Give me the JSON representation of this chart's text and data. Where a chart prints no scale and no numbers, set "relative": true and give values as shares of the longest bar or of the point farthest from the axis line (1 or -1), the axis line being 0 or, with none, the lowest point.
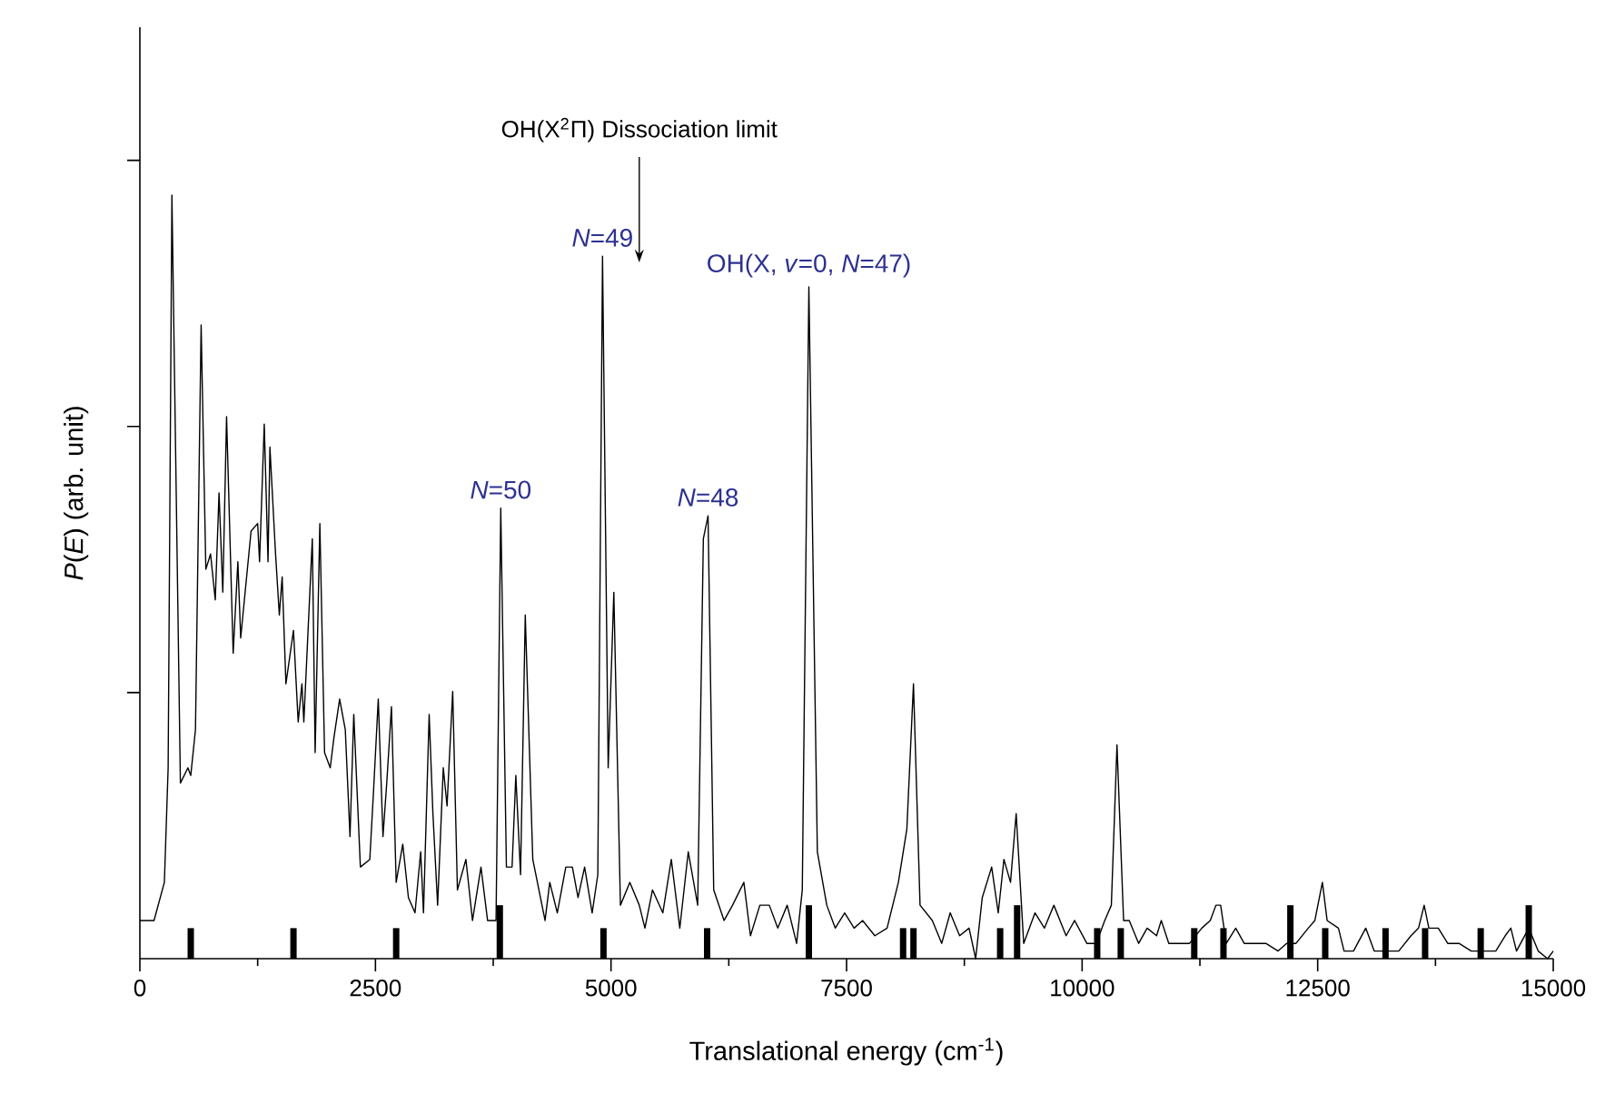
{
  "chart_data": {
    "type": "line",
    "relative": true,
    "xlabel": "Translational energy (cm$^{-1}$)",
    "ylabel": "*P*(*E*) (arb. unit)",
    "xlim": [
      0,
      15000
    ],
    "xticks": [
      0,
      2500,
      5000,
      7500,
      10000,
      12500,
      15000
    ],
    "series": [
      {
        "type": "bar",
        "color": "#000000",
        "x": [
          540,
          1630,
          2720,
          3820,
          4920,
          6020,
          7100,
          8100,
          8210,
          9130,
          9310,
          10160,
          10410,
          11190,
          11500,
          12210,
          12580,
          13220,
          13640,
          14230,
          14740
        ],
        "values": [
          0.04,
          0.04,
          0.04,
          0.07,
          0.04,
          0.04,
          0.07,
          0.04,
          0.04,
          0.04,
          0.07,
          0.04,
          0.04,
          0.04,
          0.04,
          0.07,
          0.04,
          0.04,
          0.04,
          0.04,
          0.07
        ]
      },
      {
        "color": "#000000",
        "x": [
          0,
          150,
          260,
          300,
          340,
          430,
          510,
          540,
          590,
          650,
          700,
          750,
          800,
          840,
          880,
          920,
          990,
          1040,
          1070,
          1180,
          1250,
          1270,
          1320,
          1360,
          1380,
          1440,
          1480,
          1510,
          1550,
          1630,
          1680,
          1720,
          1740,
          1830,
          1860,
          1910,
          1960,
          2020,
          2060,
          2120,
          2180,
          2230,
          2270,
          2340,
          2440,
          2480,
          2530,
          2580,
          2620,
          2670,
          2720,
          2790,
          2850,
          2920,
          2980,
          3010,
          3070,
          3110,
          3160,
          3220,
          3260,
          3320,
          3370,
          3460,
          3530,
          3620,
          3690,
          3780,
          3830,
          3890,
          3950,
          3990,
          4040,
          4090,
          4170,
          4300,
          4350,
          4430,
          4520,
          4590,
          4650,
          4720,
          4800,
          4860,
          4910,
          4970,
          5030,
          5100,
          5200,
          5300,
          5360,
          5440,
          5550,
          5640,
          5730,
          5820,
          5920,
          5980,
          6030,
          6090,
          6200,
          6290,
          6410,
          6480,
          6580,
          6680,
          6770,
          6870,
          6970,
          7030,
          7100,
          7190,
          7290,
          7380,
          7480,
          7580,
          7670,
          7800,
          7930,
          8050,
          8140,
          8210,
          8280,
          8410,
          8510,
          8600,
          8700,
          8800,
          8870,
          8940,
          9040,
          9110,
          9170,
          9240,
          9300,
          9380,
          9500,
          9600,
          9700,
          9830,
          9920,
          10050,
          10150,
          10240,
          10310,
          10370,
          10440,
          10500,
          10600,
          10690,
          10790,
          10840,
          10920,
          11050,
          11140,
          11270,
          11360,
          11420,
          11470,
          11530,
          11630,
          11720,
          11820,
          11950,
          12080,
          12170,
          12270,
          12400,
          12470,
          12550,
          12600,
          12720,
          12780,
          12880,
          13010,
          13100,
          13230,
          13360,
          13490,
          13570,
          13630,
          13680,
          13780,
          13880,
          14000,
          14130,
          14260,
          14390,
          14490,
          14550,
          14610,
          14740,
          14840,
          14940,
          15000
        ],
        "values": [
          0.05,
          0.05,
          0.1,
          0.25,
          1,
          0.23,
          0.25,
          0.24,
          0.3,
          0.83,
          0.51,
          0.53,
          0.47,
          0.61,
          0.48,
          0.71,
          0.4,
          0.52,
          0.42,
          0.56,
          0.57,
          0.52,
          0.7,
          0.52,
          0.67,
          0.53,
          0.45,
          0.5,
          0.36,
          0.43,
          0.31,
          0.36,
          0.31,
          0.55,
          0.27,
          0.57,
          0.27,
          0.25,
          0.29,
          0.34,
          0.3,
          0.16,
          0.32,
          0.12,
          0.13,
          0.22,
          0.34,
          0.16,
          0.23,
          0.33,
          0.1,
          0.15,
          0.08,
          0.06,
          0.14,
          0.06,
          0.32,
          0.19,
          0.07,
          0.25,
          0.2,
          0.35,
          0.09,
          0.13,
          0.05,
          0.12,
          0.05,
          0.05,
          0.59,
          0.12,
          0.12,
          0.24,
          0.11,
          0.45,
          0.13,
          0.05,
          0.1,
          0.06,
          0.12,
          0.12,
          0.08,
          0.12,
          0.06,
          0.11,
          0.92,
          0.25,
          0.48,
          0.07,
          0.1,
          0.07,
          0.04,
          0.09,
          0.06,
          0.13,
          0.04,
          0.14,
          0.07,
          0.55,
          0.58,
          0.09,
          0.05,
          0.07,
          0.1,
          0.03,
          0.07,
          0.07,
          0.04,
          0.07,
          0.02,
          0.09,
          0.88,
          0.14,
          0.07,
          0.04,
          0.06,
          0.04,
          0.05,
          0.03,
          0.04,
          0.1,
          0.17,
          0.36,
          0.07,
          0.05,
          0.02,
          0.06,
          0.03,
          0.04,
          0.0,
          0.08,
          0.12,
          0.06,
          0.13,
          0.1,
          0.19,
          0.02,
          0.06,
          0.04,
          0.07,
          0.03,
          0.05,
          0.02,
          0.02,
          0.05,
          0.07,
          0.28,
          0.05,
          0.05,
          0.02,
          0.04,
          0.03,
          0.05,
          0.02,
          0.02,
          0.02,
          0.04,
          0.05,
          0.07,
          0.07,
          0.02,
          0.04,
          0.02,
          0.02,
          0.02,
          0.01,
          0.02,
          0.02,
          0.04,
          0.05,
          0.1,
          0.05,
          0.04,
          0.01,
          0.01,
          0.04,
          0.01,
          0.01,
          0.01,
          0.03,
          0.04,
          0.07,
          0.04,
          0.04,
          0.02,
          0.02,
          0.01,
          0.01,
          0.01,
          0.03,
          0.04,
          0.01,
          0.04,
          0.01,
          0.0,
          0.01
        ]
      }
    ],
    "ref_lines": [
      {
        "axis": "x",
        "value": 5300,
        "label": "OH(X$^{2}$Π) Dissociation limit"
      }
    ],
    "annotations": [
      {
        "text": "*N*=50",
        "x": 3830,
        "y": 0.59
      },
      {
        "text": "*N*=49",
        "x": 4910,
        "y": 0.92
      },
      {
        "text": "*N*=48",
        "x": 6030,
        "y": 0.58
      },
      {
        "text": "OH(X, *v*=0, *N*=47)",
        "x": 7100,
        "y": 0.88
      }
    ]
  }
}
